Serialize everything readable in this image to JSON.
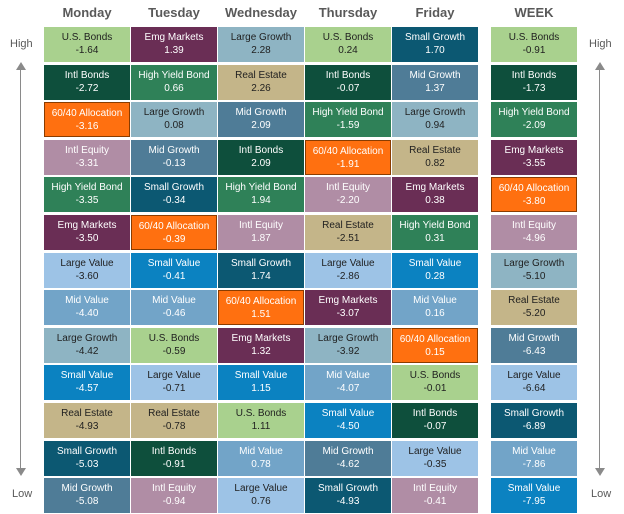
{
  "labels": {
    "high": "High",
    "low": "Low"
  },
  "colors": {
    "U.S. Bonds": "#a9d18e",
    "Intl Bonds": "#0e4f3c",
    "60/40 Allocation": "#ff7010",
    "Intl Equity": "#b08da5",
    "High Yield Bond": "#2f8158",
    "Emg Markets": "#6a2e55",
    "Large Value": "#9dc3e6",
    "Mid Value": "#72a4c8",
    "Large Growth": "#8eb4c3",
    "Small Value": "#0b82c1",
    "Real Estate": "#c4b589",
    "Small Growth": "#0c5872",
    "Mid Growth": "#4f7c97"
  },
  "chart_data": {
    "type": "table",
    "columns": [
      {
        "name": "Monday",
        "items": [
          {
            "asset": "U.S. Bonds",
            "value": "-1.64"
          },
          {
            "asset": "Intl Bonds",
            "value": "-2.72"
          },
          {
            "asset": "60/40 Allocation",
            "value": "-3.16"
          },
          {
            "asset": "Intl Equity",
            "value": "-3.31"
          },
          {
            "asset": "High Yield Bond",
            "value": "-3.35"
          },
          {
            "asset": "Emg Markets",
            "value": "-3.50"
          },
          {
            "asset": "Large Value",
            "value": "-3.60"
          },
          {
            "asset": "Mid Value",
            "value": "-4.40"
          },
          {
            "asset": "Large Growth",
            "value": "-4.42"
          },
          {
            "asset": "Small Value",
            "value": "-4.57"
          },
          {
            "asset": "Real Estate",
            "value": "-4.93"
          },
          {
            "asset": "Small Growth",
            "value": "-5.03"
          },
          {
            "asset": "Mid Growth",
            "value": "-5.08"
          }
        ]
      },
      {
        "name": "Tuesday",
        "items": [
          {
            "asset": "Emg Markets",
            "value": "1.39"
          },
          {
            "asset": "High Yield Bond",
            "value": "0.66"
          },
          {
            "asset": "Large Growth",
            "value": "0.08"
          },
          {
            "asset": "Mid Growth",
            "value": "-0.13"
          },
          {
            "asset": "Small Growth",
            "value": "-0.34"
          },
          {
            "asset": "60/40 Allocation",
            "value": "-0.39"
          },
          {
            "asset": "Small Value",
            "value": "-0.41"
          },
          {
            "asset": "Mid Value",
            "value": "-0.46"
          },
          {
            "asset": "U.S. Bonds",
            "value": "-0.59"
          },
          {
            "asset": "Large Value",
            "value": "-0.71"
          },
          {
            "asset": "Real Estate",
            "value": "-0.78"
          },
          {
            "asset": "Intl Bonds",
            "value": "-0.91"
          },
          {
            "asset": "Intl Equity",
            "value": "-0.94"
          }
        ]
      },
      {
        "name": "Wednesday",
        "items": [
          {
            "asset": "Large Growth",
            "value": "2.28"
          },
          {
            "asset": "Real Estate",
            "value": "2.26"
          },
          {
            "asset": "Mid Growth",
            "value": "2.09"
          },
          {
            "asset": "Intl Bonds",
            "value": "2.09"
          },
          {
            "asset": "High Yield Bond",
            "value": "1.94"
          },
          {
            "asset": "Intl Equity",
            "value": "1.87"
          },
          {
            "asset": "Small Growth",
            "value": "1.74"
          },
          {
            "asset": "60/40 Allocation",
            "value": "1.51"
          },
          {
            "asset": "Emg Markets",
            "value": "1.32"
          },
          {
            "asset": "Small Value",
            "value": "1.15"
          },
          {
            "asset": "U.S. Bonds",
            "value": "1.11"
          },
          {
            "asset": "Mid Value",
            "value": "0.78"
          },
          {
            "asset": "Large Value",
            "value": "0.76"
          }
        ]
      },
      {
        "name": "Thursday",
        "items": [
          {
            "asset": "U.S. Bonds",
            "value": "0.24"
          },
          {
            "asset": "Intl Bonds",
            "value": "-0.07"
          },
          {
            "asset": "High Yield Bond",
            "value": "-1.59"
          },
          {
            "asset": "60/40 Allocation",
            "value": "-1.91"
          },
          {
            "asset": "Intl Equity",
            "value": "-2.20"
          },
          {
            "asset": "Real Estate",
            "value": "-2.51"
          },
          {
            "asset": "Large Value",
            "value": "-2.86"
          },
          {
            "asset": "Emg Markets",
            "value": "-3.07"
          },
          {
            "asset": "Large Growth",
            "value": "-3.92"
          },
          {
            "asset": "Mid Value",
            "value": "-4.07"
          },
          {
            "asset": "Small Value",
            "value": "-4.50"
          },
          {
            "asset": "Mid Growth",
            "value": "-4.62"
          },
          {
            "asset": "Small Growth",
            "value": "-4.93"
          }
        ]
      },
      {
        "name": "Friday",
        "items": [
          {
            "asset": "Small Growth",
            "value": "1.70"
          },
          {
            "asset": "Mid Growth",
            "value": "1.37"
          },
          {
            "asset": "Large Growth",
            "value": "0.94"
          },
          {
            "asset": "Real Estate",
            "value": "0.82"
          },
          {
            "asset": "Emg Markets",
            "value": "0.38"
          },
          {
            "asset": "High Yield Bond",
            "value": "0.31"
          },
          {
            "asset": "Small Value",
            "value": "0.28"
          },
          {
            "asset": "Mid Value",
            "value": "0.16"
          },
          {
            "asset": "60/40 Allocation",
            "value": "0.15"
          },
          {
            "asset": "U.S. Bonds",
            "value": "-0.01"
          },
          {
            "asset": "Intl Bonds",
            "value": "-0.07"
          },
          {
            "asset": "Large Value",
            "value": "-0.35"
          },
          {
            "asset": "Intl Equity",
            "value": "-0.41"
          }
        ]
      },
      {
        "name": "WEEK",
        "items": [
          {
            "asset": "U.S. Bonds",
            "value": "-0.91"
          },
          {
            "asset": "Intl Bonds",
            "value": "-1.73"
          },
          {
            "asset": "High Yield Bond",
            "value": "-2.09"
          },
          {
            "asset": "Emg Markets",
            "value": "-3.55"
          },
          {
            "asset": "60/40 Allocation",
            "value": "-3.80"
          },
          {
            "asset": "Intl Equity",
            "value": "-4.96"
          },
          {
            "asset": "Large Growth",
            "value": "-5.10"
          },
          {
            "asset": "Real Estate",
            "value": "-5.20"
          },
          {
            "asset": "Mid Growth",
            "value": "-6.43"
          },
          {
            "asset": "Large Value",
            "value": "-6.64"
          },
          {
            "asset": "Small Growth",
            "value": "-6.89"
          },
          {
            "asset": "Mid Value",
            "value": "-7.86"
          },
          {
            "asset": "Small Value",
            "value": "-7.95"
          }
        ]
      }
    ]
  }
}
